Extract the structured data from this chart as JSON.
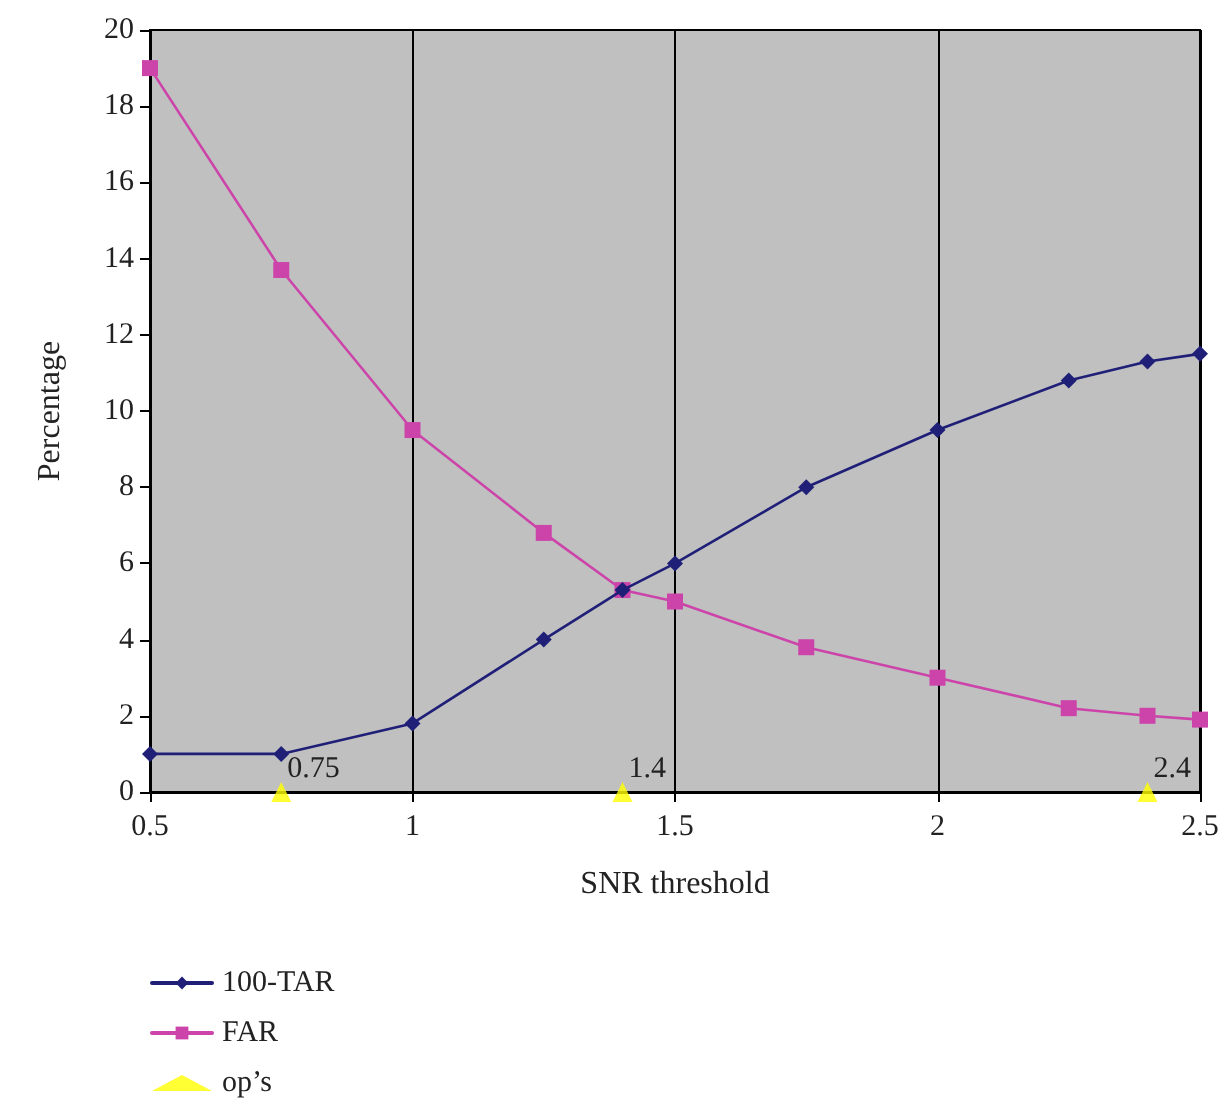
{
  "chart_data": {
    "type": "line",
    "xlabel": "SNR threshold",
    "ylabel": "Percentage",
    "xlim": [
      0.5,
      2.5
    ],
    "xticks": [
      0.5,
      1,
      1.5,
      2,
      2.5
    ],
    "ylim": [
      0,
      20
    ],
    "yticks": [
      0,
      2,
      4,
      6,
      8,
      10,
      12,
      14,
      16,
      18,
      20
    ],
    "grid": "x",
    "legend": "bottom left",
    "line_style": "solid",
    "series": [
      {
        "name": "100-TAR",
        "color": "#1f1f78",
        "marker": "diamond",
        "x": [
          0.5,
          0.75,
          1,
          1.25,
          1.4,
          1.5,
          1.75,
          2,
          2.25,
          2.4,
          2.5
        ],
        "values": [
          1,
          1,
          1.8,
          4,
          5.3,
          6,
          8,
          9.5,
          10.8,
          11.3,
          11.5
        ]
      },
      {
        "name": "FAR",
        "color": "#cc44aa",
        "marker": "square",
        "x": [
          0.5,
          0.75,
          1,
          1.25,
          1.4,
          1.5,
          1.75,
          2,
          2.25,
          2.4,
          2.5
        ],
        "values": [
          19,
          13.7,
          9.5,
          6.8,
          5.3,
          5,
          3.8,
          3,
          2.2,
          2,
          1.9
        ]
      },
      {
        "name": "op’s",
        "type": "scatter",
        "color": "#ffff00",
        "marker": "triangle",
        "x": [
          0.75,
          1.4,
          2.4
        ],
        "values": [
          0,
          0,
          0
        ]
      }
    ],
    "annotations": [
      {
        "text": "0.75",
        "x": 0.75,
        "y": 0
      },
      {
        "text": "1.4",
        "x": 1.4,
        "y": 0
      },
      {
        "text": "2.4",
        "x": 2.4,
        "y": 0
      }
    ]
  }
}
